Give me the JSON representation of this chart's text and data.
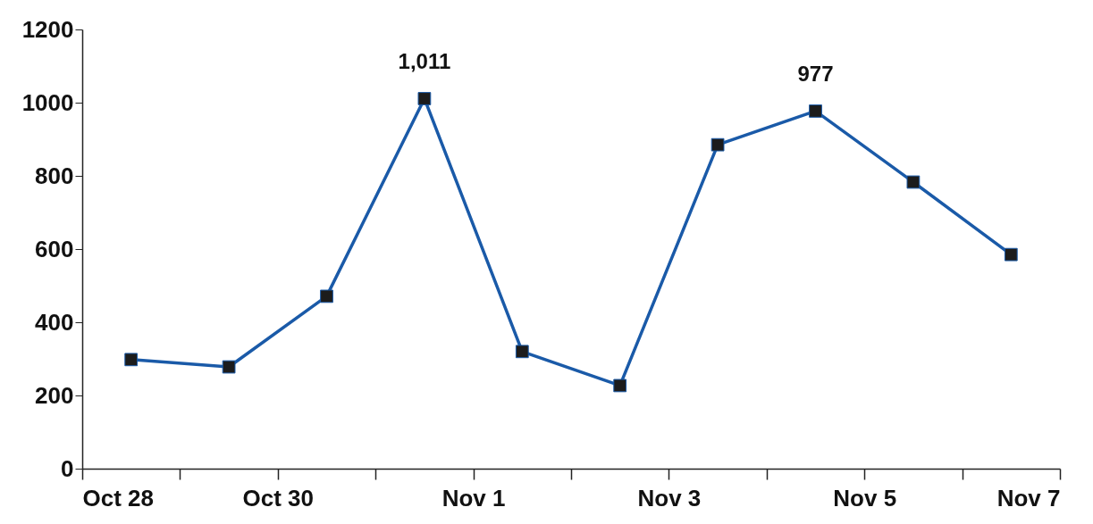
{
  "chart_data": {
    "type": "line",
    "x": [
      "--10-28T12:00",
      "--10-29T12:00",
      "--10-30T12:00",
      "--10-31T12:00",
      "--11-01T12:00",
      "--11-02T12:00",
      "--11-03T12:00",
      "--11-04T12:00",
      "--11-05T12:00",
      "--11-06T12:00"
    ],
    "series": [
      {
        "color": "#1a5aa8",
        "values": [
          298,
          278,
          471,
          1011,
          320,
          227,
          885,
          977,
          783,
          585
        ],
        "value_labels": [
          null,
          null,
          null,
          "1,011",
          null,
          null,
          null,
          "977",
          null,
          null
        ]
      }
    ],
    "xlim": [
      "--10-28",
      "--11-07"
    ],
    "xticks": [
      {
        "value": "--10-28",
        "label": "Oct 28"
      },
      {
        "value": "--10-29",
        "label": null
      },
      {
        "value": "--10-30",
        "label": "Oct 30"
      },
      {
        "value": "--10-31",
        "label": null
      },
      {
        "value": "--11-01",
        "label": "Nov 1"
      },
      {
        "value": "--11-02",
        "label": null
      },
      {
        "value": "--11-03",
        "label": "Nov 3"
      },
      {
        "value": "--11-04",
        "label": null
      },
      {
        "value": "--11-05",
        "label": "Nov 5"
      },
      {
        "value": "--11-06",
        "label": null
      },
      {
        "value": "--11-07",
        "label": "Nov 7"
      }
    ],
    "ylim": [
      0,
      1200
    ],
    "yticks": [
      0,
      200,
      400,
      600,
      800,
      1000,
      1200
    ],
    "marker": "square",
    "line_style": "solid",
    "grid": false
  }
}
